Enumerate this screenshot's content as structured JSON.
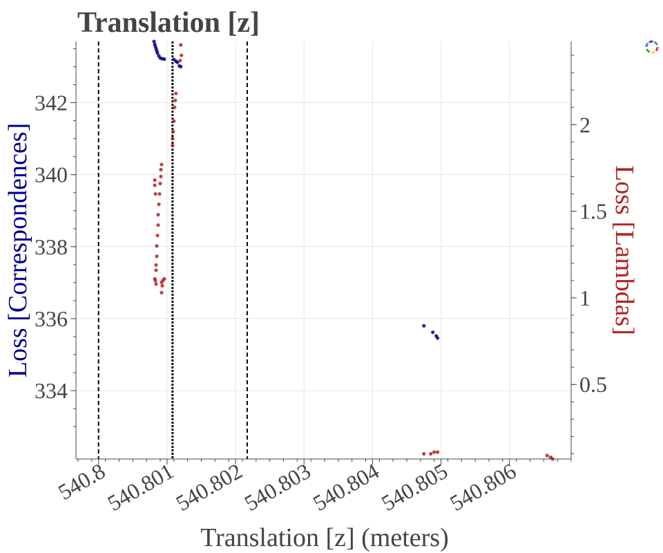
{
  "chart_data": {
    "type": "scatter",
    "title": "Translation [z]",
    "xlabel": "Translation [z] (meters)",
    "ylabel_left": "Loss [Correspondences]",
    "ylabel_right": "Loss [Lambdas]",
    "xlim": [
      540.79967,
      540.8069
    ],
    "ylim_left": [
      332.1,
      343.7
    ],
    "ylim_right": [
      0.07,
      2.48
    ],
    "x_ticks": [
      540.8,
      540.801,
      540.802,
      540.803,
      540.804,
      540.805,
      540.806
    ],
    "x_tick_labels": [
      "540.8",
      "540.801",
      "540.802",
      "540.803",
      "540.804",
      "540.805",
      "540.806"
    ],
    "y_left_ticks": [
      334,
      336,
      338,
      340,
      342
    ],
    "y_left_tick_labels": [
      "334",
      "336",
      "338",
      "340",
      "342"
    ],
    "y_right_ticks": [
      0.5,
      1,
      1.5,
      2
    ],
    "y_right_tick_labels": [
      "0.5",
      "1",
      "1.5",
      "2"
    ],
    "grid": true,
    "vertical_lines": [
      {
        "x": 540.8,
        "style": "dashed",
        "color": "#000000"
      },
      {
        "x": 540.80108,
        "style": "dotted",
        "color": "#000000"
      },
      {
        "x": 540.80217,
        "style": "dashed",
        "color": "#000000"
      }
    ],
    "series": [
      {
        "axis": "left",
        "color": "#00008b",
        "points": [
          [
            540.80081,
            343.7
          ],
          [
            540.80082,
            343.62
          ],
          [
            540.80083,
            343.56
          ],
          [
            540.80084,
            343.5
          ],
          [
            540.80085,
            343.44
          ],
          [
            540.80086,
            343.38
          ],
          [
            540.80088,
            343.3
          ],
          [
            540.8009,
            343.24
          ],
          [
            540.80093,
            343.22
          ],
          [
            540.80096,
            343.21
          ],
          [
            540.8011,
            343.2
          ],
          [
            540.80113,
            343.15
          ],
          [
            540.80115,
            343.12
          ],
          [
            540.80118,
            343.02
          ],
          [
            540.8012,
            343.0
          ],
          [
            540.80475,
            335.8
          ],
          [
            540.80488,
            335.62
          ],
          [
            540.80493,
            335.52
          ],
          [
            540.80495,
            335.46
          ]
        ]
      },
      {
        "axis": "right",
        "color": "#b22222",
        "points": [
          [
            540.8012,
            2.46
          ],
          [
            540.80121,
            2.4
          ],
          [
            540.80119,
            2.37
          ],
          [
            540.80113,
            2.18
          ],
          [
            540.80112,
            2.14
          ],
          [
            540.80111,
            2.1
          ],
          [
            540.8011,
            2.02
          ],
          [
            540.80109,
            1.96
          ],
          [
            540.80108,
            1.92
          ],
          [
            540.80108,
            1.88
          ],
          [
            540.80092,
            1.77
          ],
          [
            540.80091,
            1.74
          ],
          [
            540.80091,
            1.7
          ],
          [
            540.8009,
            1.66
          ],
          [
            540.80089,
            1.6
          ],
          [
            540.80088,
            1.54
          ],
          [
            540.80087,
            1.48
          ],
          [
            540.80087,
            1.42
          ],
          [
            540.80086,
            1.36
          ],
          [
            540.80085,
            1.3
          ],
          [
            540.80085,
            1.24
          ],
          [
            540.80084,
            1.19
          ],
          [
            540.80084,
            1.16
          ],
          [
            540.80083,
            1.6
          ],
          [
            540.80082,
            1.65
          ],
          [
            540.80082,
            1.68
          ],
          [
            540.80082,
            1.11
          ],
          [
            540.80083,
            1.1
          ],
          [
            540.80084,
            1.08
          ],
          [
            540.80092,
            1.09
          ],
          [
            540.80094,
            1.1
          ],
          [
            540.80096,
            1.11
          ],
          [
            540.80093,
            1.07
          ],
          [
            540.80092,
            1.03
          ],
          [
            540.80475,
            0.1
          ],
          [
            540.80485,
            0.1
          ],
          [
            540.8049,
            0.11
          ],
          [
            540.80495,
            0.11
          ],
          [
            540.80655,
            0.09
          ],
          [
            540.8066,
            0.08
          ],
          [
            540.80663,
            0.07
          ]
        ]
      }
    ]
  }
}
